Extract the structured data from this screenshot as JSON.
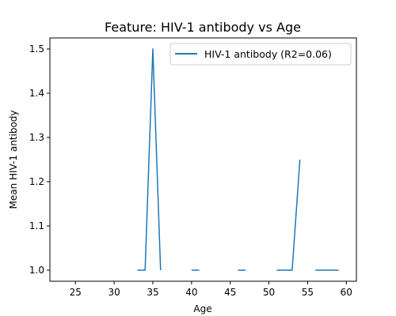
{
  "chart_data": {
    "type": "line",
    "title": "Feature: HIV-1 antibody vs Age",
    "xlabel": "Age",
    "ylabel": "Mean HIV-1 antibody",
    "xlim": [
      21.7,
      61.3
    ],
    "ylim": [
      0.975,
      1.525
    ],
    "x_ticks": [
      25,
      30,
      35,
      40,
      45,
      50,
      55,
      60
    ],
    "y_ticks": [
      1.0,
      1.1,
      1.2,
      1.3,
      1.4,
      1.5
    ],
    "y_tick_labels": [
      "1.0",
      "1.1",
      "1.2",
      "1.3",
      "1.4",
      "1.5"
    ],
    "grid": false,
    "legend_position": "top-right",
    "series": [
      {
        "name": "HIV-1 antibody (R2=0.06)",
        "color": "#1f77b4",
        "segments": [
          [
            [
              33,
              1.0
            ],
            [
              34,
              1.0
            ],
            [
              35,
              1.5
            ],
            [
              36,
              1.0
            ]
          ],
          [
            [
              40,
              1.0
            ],
            [
              41,
              1.0
            ]
          ],
          [
            [
              46,
              1.0
            ],
            [
              47,
              1.0
            ]
          ],
          [
            [
              51,
              1.0
            ],
            [
              52,
              1.0
            ],
            [
              53,
              1.0
            ],
            [
              54,
              1.25
            ]
          ],
          [
            [
              56,
              1.0
            ],
            [
              57,
              1.0
            ],
            [
              58,
              1.0
            ],
            [
              59,
              1.0
            ]
          ]
        ]
      }
    ]
  }
}
